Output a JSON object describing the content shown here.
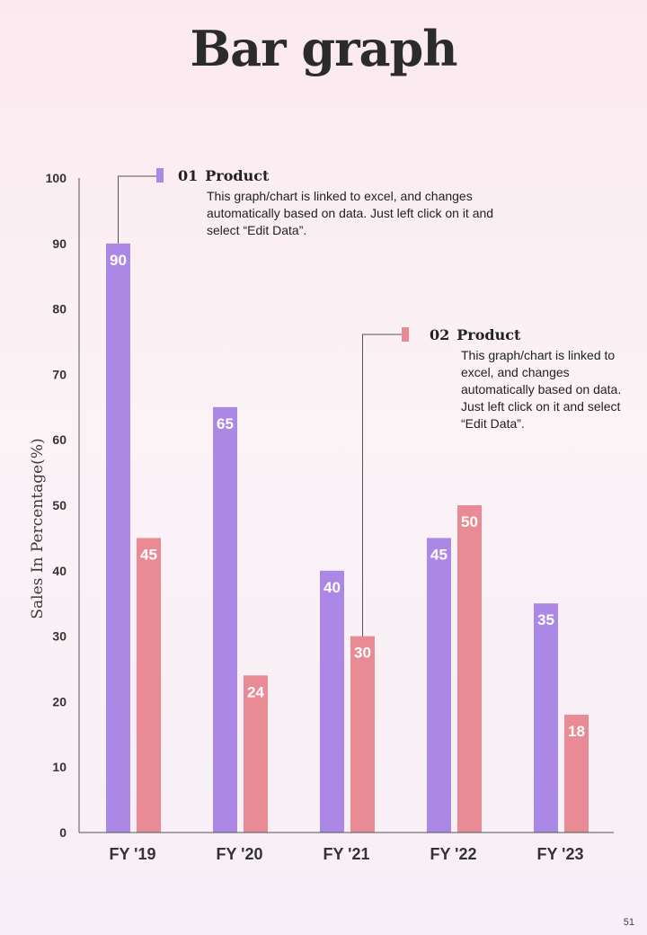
{
  "title": "Bar graph",
  "page_number": "51",
  "colors": {
    "series1": "#ac88e6",
    "series2": "#e88b95"
  },
  "callouts": [
    {
      "number": "01",
      "title": "Product",
      "text": "This graph/chart is linked to excel, and changes automatically based on data. Just left click on it and select “Edit Data”."
    },
    {
      "number": "02",
      "title": "Product",
      "text": "This graph/chart is linked to excel, and changes automatically based on data. Just left click on it and select “Edit Data”."
    }
  ],
  "chart_data": {
    "type": "bar",
    "title": "Bar graph",
    "xlabel": "",
    "ylabel": "Sales In Percentage(%)",
    "ylim": [
      0,
      100
    ],
    "yticks": [
      0,
      10,
      20,
      30,
      40,
      50,
      60,
      70,
      80,
      90,
      100
    ],
    "categories": [
      "FY '19",
      "FY '20",
      "FY '21",
      "FY '22",
      "FY '23"
    ],
    "series": [
      {
        "name": "Product 01",
        "values": [
          90,
          65,
          40,
          45,
          35
        ]
      },
      {
        "name": "Product 02",
        "values": [
          45,
          24,
          30,
          50,
          18
        ]
      }
    ],
    "grid": false,
    "legend": "callouts"
  }
}
